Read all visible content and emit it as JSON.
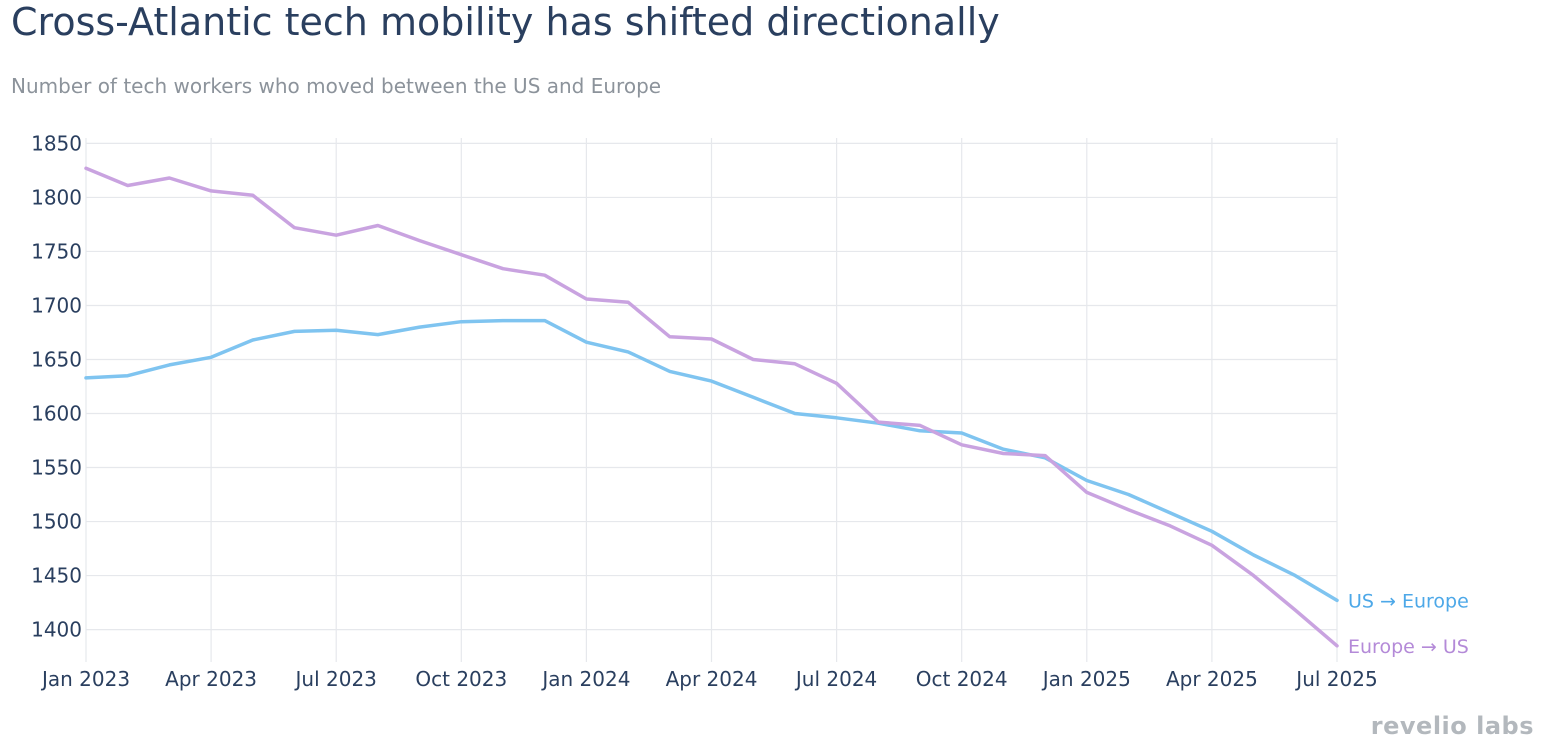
{
  "title": "Cross-Atlantic tech mobility has shifted directionally",
  "subtitle": "Number of tech workers who moved between the US and Europe",
  "brand": "revelio labs",
  "colors": {
    "us_to_europe": "#7fc4f0",
    "europe_to_us": "#c9a3e0",
    "label_us_to_europe": "#4da8e8",
    "label_europe_to_us": "#b48ad8",
    "grid": "#e6e8ec",
    "tick": "#2a3f5f"
  },
  "chart_data": {
    "type": "line",
    "title": "Cross-Atlantic tech mobility has shifted directionally",
    "subtitle": "Number of tech workers who moved between the US and Europe",
    "xlabel": "",
    "ylabel": "",
    "x": [
      "2023-01",
      "2023-02",
      "2023-03",
      "2023-04",
      "2023-05",
      "2023-06",
      "2023-07",
      "2023-08",
      "2023-09",
      "2023-10",
      "2023-11",
      "2023-12",
      "2024-01",
      "2024-02",
      "2024-03",
      "2024-04",
      "2024-05",
      "2024-06",
      "2024-07",
      "2024-08",
      "2024-09",
      "2024-10",
      "2024-11",
      "2024-12",
      "2025-01",
      "2025-02",
      "2025-03",
      "2025-04",
      "2025-05",
      "2025-06",
      "2025-07"
    ],
    "x_ticks": [
      "Jan 2023",
      "Apr 2023",
      "Jul 2023",
      "Oct 2023",
      "Jan 2024",
      "Apr 2024",
      "Jul 2024",
      "Oct 2024",
      "Jan 2025",
      "Apr 2025",
      "Jul 2025"
    ],
    "y_ticks": [
      1850,
      1800,
      1750,
      1700,
      1650,
      1600,
      1550,
      1500,
      1450,
      1400
    ],
    "ylim": [
      1370,
      1855
    ],
    "grid": true,
    "legend": "inline labels at line ends",
    "series": [
      {
        "name": "US → Europe",
        "values": [
          1633,
          1635,
          1645,
          1652,
          1668,
          1676,
          1677,
          1673,
          1680,
          1685,
          1686,
          1686,
          1666,
          1657,
          1639,
          1630,
          1615,
          1600,
          1596,
          1591,
          1584,
          1582,
          1567,
          1559,
          1538,
          1525,
          1508,
          1491,
          1469,
          1450,
          1427
        ]
      },
      {
        "name": "Europe → US",
        "values": [
          1827,
          1811,
          1818,
          1806,
          1802,
          1772,
          1765,
          1774,
          1760,
          1747,
          1734,
          1728,
          1706,
          1703,
          1671,
          1669,
          1650,
          1646,
          1628,
          1592,
          1589,
          1571,
          1563,
          1561,
          1527,
          1511,
          1496,
          1478,
          1450,
          1418,
          1385
        ]
      }
    ]
  }
}
